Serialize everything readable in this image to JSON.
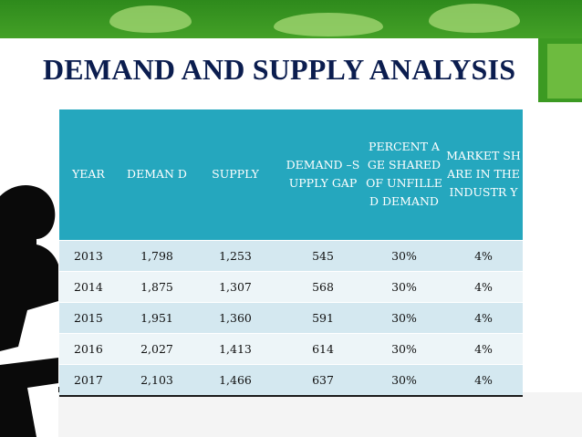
{
  "slide": {
    "title": "DEMAND AND SUPPLY ANALYSIS"
  },
  "table": {
    "headers": [
      "YEAR",
      "DEMAN D",
      "SUPPLY",
      "DEMAND –SUPPLY GAP",
      "PERCENT AGE SHARED OF UNFILLE D DEMAND",
      "MARKET SHARE IN THE INDUSTR Y"
    ],
    "rows": [
      [
        "2013",
        "1,798",
        "1,253",
        "545",
        "30%",
        "4%"
      ],
      [
        "2014",
        "1,875",
        "1,307",
        "568",
        "30%",
        "4%"
      ],
      [
        "2015",
        "1,951",
        "1,360",
        "591",
        "30%",
        "4%"
      ],
      [
        "2016",
        "2,027",
        "1,413",
        "614",
        "30%",
        "4%"
      ],
      [
        "2017",
        "2,103",
        "1,466",
        "637",
        "30%",
        "4%"
      ]
    ]
  },
  "colors": {
    "header_bg": "#25a7be",
    "row_odd": "#d4e8f0",
    "row_even": "#edf5f8",
    "title": "#0b1d4f",
    "green": "#3c9a22"
  }
}
